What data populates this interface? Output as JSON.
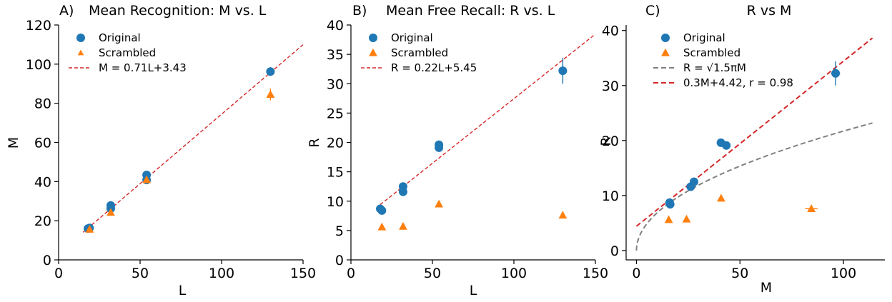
{
  "chart_data": [
    {
      "type": "scatter",
      "panel_label": "A)",
      "title": "Mean Recognition: M vs. L",
      "xlabel": "L",
      "ylabel": "M",
      "xlim": [
        0,
        150
      ],
      "ylim": [
        0,
        120
      ],
      "xticks": [
        0,
        50,
        100,
        150
      ],
      "yticks": [
        0,
        20,
        40,
        60,
        80,
        100,
        120
      ],
      "legend_position": "upper-left",
      "series": [
        {
          "name": "Original",
          "marker": "circle",
          "color": "#1f77b4",
          "points": [
            {
              "x": 18,
              "y": 16,
              "yerr": 0.8
            },
            {
              "x": 19,
              "y": 16.3,
              "yerr": 0.8
            },
            {
              "x": 32,
              "y": 26.2,
              "yerr": 1
            },
            {
              "x": 32,
              "y": 27.8,
              "yerr": 1
            },
            {
              "x": 54,
              "y": 40.8,
              "yerr": 1
            },
            {
              "x": 54,
              "y": 43.4,
              "yerr": 1
            },
            {
              "x": 130,
              "y": 96.2,
              "yerr": 2.2
            }
          ]
        },
        {
          "name": "Scrambled",
          "marker": "triangle",
          "color": "#ff7f0e",
          "points": [
            {
              "x": 19,
              "y": 15.6,
              "yerr": 0.8
            },
            {
              "x": 32,
              "y": 24.2,
              "yerr": 1
            },
            {
              "x": 54,
              "y": 40.9,
              "yerr": 1
            },
            {
              "x": 130,
              "y": 84.5,
              "yerr": 3
            }
          ]
        },
        {
          "name": "M = 0.71L+3.43",
          "type": "line",
          "style": "dashed",
          "color": "#d62728",
          "slope": 0.71,
          "intercept": 3.43,
          "x_range": [
            15,
            150
          ]
        }
      ]
    },
    {
      "type": "scatter",
      "panel_label": "B)",
      "title": "Mean Free Recall: R vs. L",
      "xlabel": "L",
      "ylabel": "R",
      "xlim": [
        0,
        150
      ],
      "ylim": [
        0,
        40
      ],
      "xticks": [
        0,
        50,
        100,
        150
      ],
      "yticks": [
        0,
        5,
        10,
        15,
        20,
        25,
        30,
        35,
        40
      ],
      "legend_position": "upper-left",
      "series": [
        {
          "name": "Original",
          "marker": "circle",
          "color": "#1f77b4",
          "points": [
            {
              "x": 18,
              "y": 8.7,
              "yerr": 0.3
            },
            {
              "x": 19,
              "y": 8.4,
              "yerr": 0.3
            },
            {
              "x": 32,
              "y": 11.6,
              "yerr": 0.4
            },
            {
              "x": 32,
              "y": 12.5,
              "yerr": 0.4
            },
            {
              "x": 54,
              "y": 19.1,
              "yerr": 0.5
            },
            {
              "x": 54,
              "y": 19.6,
              "yerr": 0.5
            },
            {
              "x": 130,
              "y": 32.2,
              "yerr": 2.2
            }
          ]
        },
        {
          "name": "Scrambled",
          "marker": "triangle",
          "color": "#ff7f0e",
          "points": [
            {
              "x": 19,
              "y": 5.6,
              "yerr": 0.2
            },
            {
              "x": 32,
              "y": 5.7,
              "yerr": 0.2
            },
            {
              "x": 54,
              "y": 9.5,
              "yerr": 0.3
            },
            {
              "x": 130,
              "y": 7.6,
              "yerr": 0.3
            }
          ]
        },
        {
          "name": "R = 0.22L+5.45",
          "type": "line",
          "style": "dashed",
          "color": "#d62728",
          "slope": 0.22,
          "intercept": 5.45,
          "x_range": [
            18,
            150
          ]
        }
      ]
    },
    {
      "type": "scatter",
      "panel_label": "C)",
      "title": "R vs M",
      "xlabel": "M",
      "ylabel": "R",
      "xlim": [
        -5,
        120
      ],
      "ylim": [
        -1.7,
        41
      ],
      "xticks": [
        0,
        50,
        100
      ],
      "yticks": [
        0,
        10,
        20,
        30,
        40
      ],
      "legend_position": "upper-left",
      "series": [
        {
          "name": "Original",
          "marker": "circle",
          "color": "#1f77b4",
          "points": [
            {
              "x": 16,
              "y": 8.7,
              "yerr": 0.3,
              "xerr": 0.5
            },
            {
              "x": 16.3,
              "y": 8.4,
              "yerr": 0.3,
              "xerr": 0.5
            },
            {
              "x": 26.2,
              "y": 11.6,
              "yerr": 0.4,
              "xerr": 0.6
            },
            {
              "x": 27.8,
              "y": 12.5,
              "yerr": 0.4,
              "xerr": 0.6
            },
            {
              "x": 40.8,
              "y": 19.6,
              "yerr": 0.5,
              "xerr": 0.8
            },
            {
              "x": 43.4,
              "y": 19.1,
              "yerr": 0.5,
              "xerr": 0.8
            },
            {
              "x": 96.2,
              "y": 32.2,
              "yerr": 2.2,
              "xerr": 2.2
            }
          ]
        },
        {
          "name": "Scrambled",
          "marker": "triangle",
          "color": "#ff7f0e",
          "points": [
            {
              "x": 15.6,
              "y": 5.6,
              "yerr": 0.2,
              "xerr": 0.5
            },
            {
              "x": 24.2,
              "y": 5.7,
              "yerr": 0.2,
              "xerr": 0.5
            },
            {
              "x": 40.9,
              "y": 9.5,
              "yerr": 0.3,
              "xerr": 0.8
            },
            {
              "x": 84.5,
              "y": 7.6,
              "yerr": 0.3,
              "xerr": 3
            }
          ]
        },
        {
          "name": "R = √1.5πM",
          "type": "curve",
          "formula": "sqrt(1.5*pi*M)",
          "style": "dashed",
          "color": "#808080",
          "x_range": [
            0,
            114
          ]
        },
        {
          "name": "0.3M+4.42, r = 0.98",
          "type": "line",
          "style": "dashed",
          "color": "#d62728",
          "slope": 0.3,
          "intercept": 4.42,
          "x_range": [
            0,
            114
          ]
        }
      ]
    }
  ]
}
